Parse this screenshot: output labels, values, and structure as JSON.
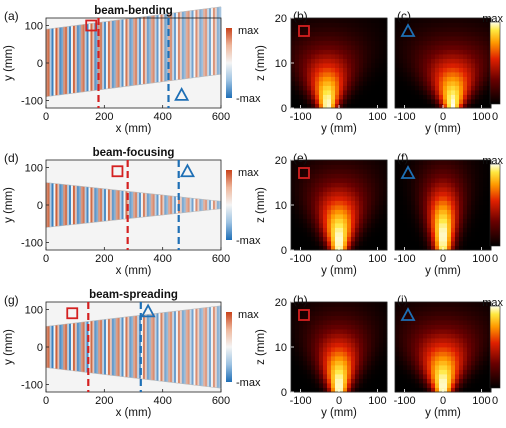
{
  "colors": {
    "red_marker": "#d42020",
    "blue_marker": "#1e6fb5",
    "wave_positive": "#c64a1c",
    "wave_negative": "#1f6fb6"
  },
  "rows": [
    {
      "wave_panel_label": "(a)",
      "title": "beam-bending",
      "red_line_x_mm": 180,
      "blue_line_x_mm": 420,
      "red_square": {
        "x_mm": 155,
        "y_mm": 100
      },
      "blue_triangle": {
        "x_mm": 465,
        "y_mm": -85
      },
      "beam_center_start_mm": 0,
      "beam_center_end_mm": 60,
      "beam_width_start_mm": 90,
      "beam_width_end_mm": 90,
      "heatmap_left_label": "(b)",
      "heatmap_right_label": "(c)",
      "heat_left": {
        "center_y_mm": -30,
        "spread": 0.55,
        "focus_z": 0
      },
      "heat_right": {
        "center_y_mm": 25,
        "spread": 0.65,
        "focus_z": 0
      }
    },
    {
      "wave_panel_label": "(d)",
      "title": "beam-focusing",
      "red_line_x_mm": 280,
      "blue_line_x_mm": 455,
      "red_square": {
        "x_mm": 245,
        "y_mm": 90
      },
      "blue_triangle": {
        "x_mm": 485,
        "y_mm": 90
      },
      "beam_center_start_mm": 0,
      "beam_center_end_mm": 0,
      "beam_width_start_mm": 60,
      "beam_width_end_mm": 10,
      "heatmap_left_label": "(e)",
      "heatmap_right_label": "(f)",
      "heat_left": {
        "center_y_mm": 0,
        "spread": 0.45,
        "focus_z": 2
      },
      "heat_right": {
        "center_y_mm": 0,
        "spread": 0.25,
        "focus_z": 3
      }
    },
    {
      "wave_panel_label": "(g)",
      "title": "beam-spreading",
      "red_line_x_mm": 145,
      "blue_line_x_mm": 325,
      "red_square": {
        "x_mm": 90,
        "y_mm": 90
      },
      "blue_triangle": {
        "x_mm": 350,
        "y_mm": 95
      },
      "beam_center_start_mm": 0,
      "beam_center_end_mm": 0,
      "beam_width_start_mm": 55,
      "beam_width_end_mm": 110,
      "heatmap_left_label": "(h)",
      "heatmap_right_label": "(i)",
      "heat_left": {
        "center_y_mm": 0,
        "spread": 0.45,
        "focus_z": 1
      },
      "heat_right": {
        "center_y_mm": 0,
        "spread": 0.6,
        "focus_z": 1
      }
    }
  ],
  "wave_axes": {
    "xlabel": "x (mm)",
    "ylabel": "y (mm)",
    "xticks": [
      "0",
      "200",
      "400",
      "600"
    ],
    "yticks": [
      "100",
      "0",
      "-100"
    ],
    "xlim": [
      0,
      600
    ],
    "ylim": [
      -120,
      120
    ]
  },
  "heat_axes": {
    "xlabel": "y (mm)",
    "ylabel": "z (mm)",
    "xticks": [
      "-100",
      "0",
      "100"
    ],
    "yticks": [
      "20",
      "10",
      "0"
    ],
    "xlim": [
      -125,
      125
    ],
    "ylim": [
      0,
      20
    ]
  },
  "colorbar_wave": {
    "max_label": "max",
    "min_label": "-max"
  },
  "colorbar_heat": {
    "max_label": "max",
    "min_label": "0"
  }
}
